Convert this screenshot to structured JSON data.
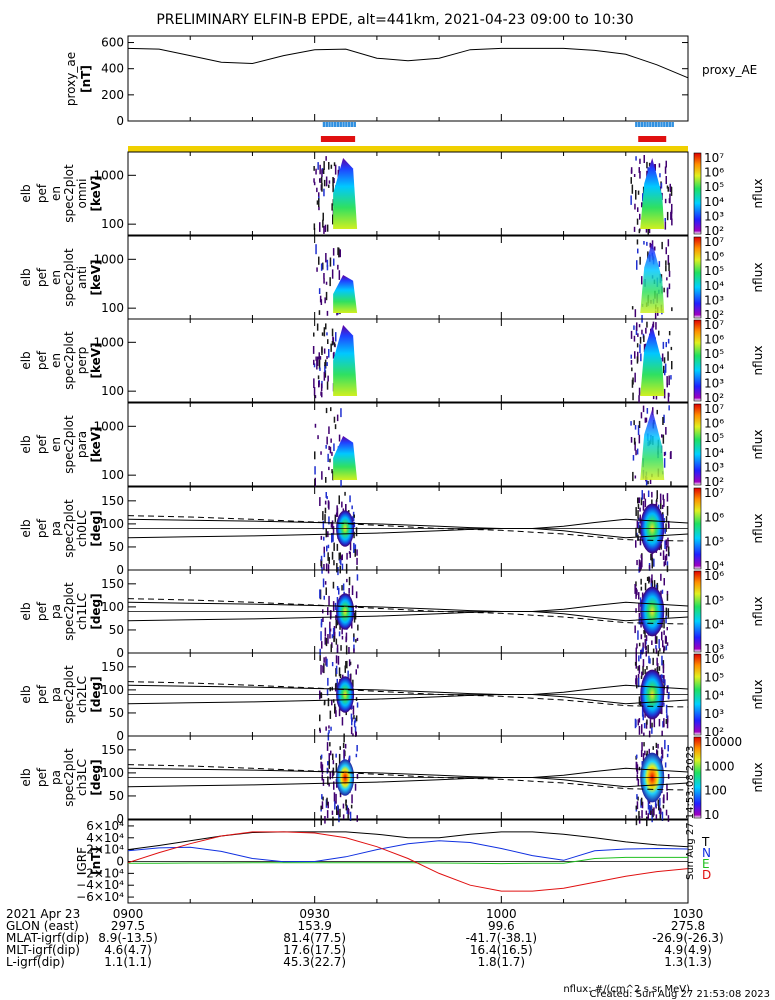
{
  "title": "PRELIMINARY ELFIN-B EPDE, alt=441km, 2021-04-23 09:00 to 10:30",
  "panels": [
    {
      "ylabel": [
        "proxy_ae",
        "[nT]"
      ],
      "right_label": "proxy_AE",
      "yticks": [
        "600",
        "400",
        "200",
        "0"
      ]
    },
    {
      "ylabel": [
        "elb",
        "pef",
        "en",
        "spec2plot",
        "omni",
        "[keV]"
      ],
      "yticks": [
        "1000",
        "100"
      ],
      "cbar_unit": "nflux",
      "cbar_ticks": [
        "10⁷",
        "10⁶",
        "10⁵",
        "10⁴",
        "10³",
        "10²"
      ]
    },
    {
      "ylabel": [
        "elb",
        "pef",
        "en",
        "spec2plot",
        "anti",
        "[keV]"
      ],
      "yticks": [
        "1000",
        "100"
      ],
      "cbar_unit": "nflux",
      "cbar_ticks": [
        "10⁷",
        "10⁶",
        "10⁵",
        "10⁴",
        "10³",
        "10²"
      ]
    },
    {
      "ylabel": [
        "elb",
        "pef",
        "en",
        "spec2plot",
        "perp",
        "[keV]"
      ],
      "yticks": [
        "1000",
        "100"
      ],
      "cbar_unit": "nflux",
      "cbar_ticks": [
        "10⁷",
        "10⁶",
        "10⁵",
        "10⁴",
        "10³",
        "10²"
      ]
    },
    {
      "ylabel": [
        "elb",
        "pef",
        "en",
        "spec2plot",
        "para",
        "[keV]"
      ],
      "yticks": [
        "1000",
        "100"
      ],
      "cbar_unit": "nflux",
      "cbar_ticks": [
        "10⁷",
        "10⁶",
        "10⁵",
        "10⁴",
        "10³",
        "10²"
      ]
    },
    {
      "ylabel": [
        "elb",
        "pef",
        "pa",
        "spec2plot",
        "ch0LC",
        "[deg]"
      ],
      "yticks": [
        "150",
        "100",
        "50",
        "0"
      ],
      "cbar_unit": "nflux",
      "cbar_ticks": [
        "10⁷",
        "10⁶",
        "10⁵",
        "10⁴"
      ]
    },
    {
      "ylabel": [
        "elb",
        "pef",
        "pa",
        "spec2plot",
        "ch1LC",
        "[deg]"
      ],
      "yticks": [
        "150",
        "100",
        "50",
        "0"
      ],
      "cbar_unit": "nflux",
      "cbar_ticks": [
        "10⁶",
        "10⁵",
        "10⁴",
        "10³"
      ]
    },
    {
      "ylabel": [
        "elb",
        "pef",
        "pa",
        "spec2plot",
        "ch2LC",
        "[deg]"
      ],
      "yticks": [
        "150",
        "100",
        "50",
        "0"
      ],
      "cbar_unit": "nflux",
      "cbar_ticks": [
        "10⁶",
        "10⁵",
        "10⁴",
        "10³",
        "10²"
      ]
    },
    {
      "ylabel": [
        "elb",
        "pef",
        "pa",
        "spec2plot",
        "ch3LC",
        "[deg]"
      ],
      "yticks": [
        "150",
        "100",
        "50",
        "0"
      ],
      "cbar_unit": "nflux",
      "cbar_ticks": [
        "10000",
        "1000",
        "100",
        "10"
      ]
    },
    {
      "ylabel": [
        "IGRF",
        "[nT]"
      ],
      "yticks": [
        "6×10⁴",
        "4×10⁴",
        "2×10⁴",
        "0",
        "−2×10⁴",
        "−4×10⁴",
        "−6×10⁴"
      ],
      "legend": [
        "T",
        "N",
        "E",
        "D"
      ],
      "side_note": "Sun Aug 27 14:53:08 2023"
    }
  ],
  "colors": {
    "T": "#000000",
    "N": "#1030e0",
    "E": "#20c020",
    "D": "#e01010",
    "ae": "#000000",
    "bar_blue": "#3090e0",
    "bar_red": "#e01010",
    "bar_yellow": "#f0d000"
  },
  "footer": {
    "rows": [
      {
        "label": "2021 Apr 23",
        "values": [
          "0900",
          "0930",
          "1000",
          "1030"
        ]
      },
      {
        "label": "GLON (east)",
        "values": [
          "297.5",
          "153.9",
          "99.6",
          "275.8"
        ]
      },
      {
        "label": "MLAT-igrf(dip)",
        "values": [
          "8.9(-13.5)",
          "81.4(77.5)",
          "-41.7(-38.1)",
          "-26.9(-26.3)"
        ]
      },
      {
        "label": "MLT-igrf(dip)",
        "values": [
          "4.6(4.7)",
          "17.6(17.5)",
          "16.4(16.5)",
          "4.9(4.9)"
        ]
      },
      {
        "label": "L-igrf(dip)",
        "values": [
          "1.1(1.1)",
          "45.3(22.7)",
          "1.8(1.7)",
          "1.3(1.3)"
        ]
      }
    ],
    "unit_note": "nflux: #/(cm^2 s sr MeV)",
    "created": "Created: Sun Aug 27 21:53:08 2023"
  },
  "chart_data": [
    {
      "type": "line",
      "title": "proxy_AE",
      "x_minutes": [
        0,
        5,
        10,
        15,
        20,
        25,
        30,
        35,
        40,
        45,
        50,
        55,
        60,
        65,
        70,
        75,
        80,
        85,
        90
      ],
      "values": [
        555,
        550,
        500,
        450,
        440,
        500,
        545,
        550,
        480,
        460,
        480,
        545,
        555,
        555,
        555,
        540,
        510,
        430,
        330
      ],
      "ylim": [
        0,
        650
      ],
      "yticks": [
        0,
        200,
        400,
        600
      ]
    },
    {
      "type": "heatmap",
      "description_of_panels": "energy spectrograms omni/anti/perp/para (keV, log 60-3000) and pitch-angle spectrograms ch0LC-ch3LC (deg 0-180); data present only during two science zones",
      "science_zones_minutes": [
        [
          31,
          36.5
        ],
        [
          82,
          86.5
        ]
      ],
      "energy_ylim_keV": [
        60,
        3000
      ],
      "pa_ylim_deg": [
        0,
        180
      ]
    },
    {
      "type": "line",
      "title": "IGRF",
      "x_minutes": [
        0,
        5,
        10,
        15,
        20,
        25,
        30,
        35,
        40,
        45,
        50,
        55,
        60,
        65,
        70,
        75,
        80,
        85,
        90
      ],
      "ylim": [
        -70000,
        70000
      ],
      "series": [
        {
          "name": "T",
          "values": [
            20000,
            27000,
            35000,
            43000,
            49000,
            50000,
            50000,
            50000,
            46000,
            40000,
            40000,
            46000,
            50000,
            50000,
            46000,
            40000,
            33000,
            28000,
            25000
          ]
        },
        {
          "name": "N",
          "values": [
            18000,
            23000,
            24000,
            17000,
            5000,
            -500,
            0,
            8000,
            20000,
            30000,
            35000,
            32000,
            22000,
            10000,
            2000,
            18000,
            21000,
            22000,
            21000
          ]
        },
        {
          "name": "E",
          "values": [
            -3000,
            -3000,
            -2500,
            -2500,
            -2000,
            -2000,
            -2000,
            -2000,
            -2000,
            -2000,
            -2500,
            -3000,
            -3500,
            -3000,
            -3000,
            5000,
            7000,
            7000,
            7000
          ]
        },
        {
          "name": "D",
          "values": [
            -2000,
            15000,
            30000,
            43000,
            50000,
            50000,
            48000,
            40000,
            25000,
            5000,
            -20000,
            -40000,
            -50000,
            -50000,
            -45000,
            -35000,
            -25000,
            -17000,
            -12000
          ]
        }
      ]
    }
  ]
}
